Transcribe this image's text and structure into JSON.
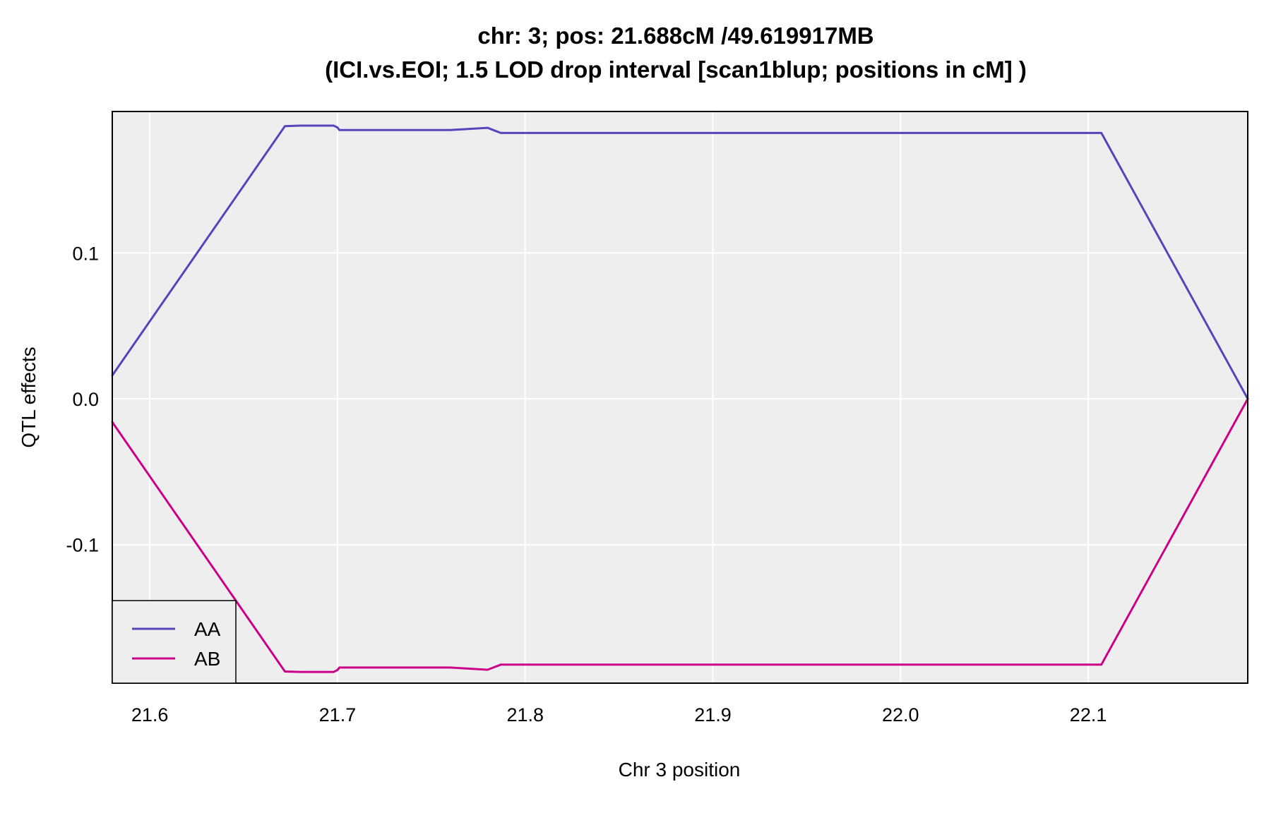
{
  "chart_data": {
    "type": "line",
    "title": "chr: 3; pos: 21.688cM /49.619917MB",
    "subtitle": "(ICI.vs.EOI; 1.5 LOD drop interval [scan1blup; positions in cM] )",
    "xlabel": "Chr 3 position",
    "ylabel": "QTL effects",
    "xlim": [
      21.58,
      22.185
    ],
    "ylim": [
      -0.195,
      0.197
    ],
    "x_ticks": [
      21.6,
      21.7,
      21.8,
      21.9,
      22.0,
      22.1
    ],
    "x_tick_labels": [
      "21.6",
      "21.7",
      "21.8",
      "21.9",
      "22.0",
      "22.1"
    ],
    "y_ticks": [
      -0.1,
      0.0,
      0.1
    ],
    "y_tick_labels": [
      "-0.1",
      "0.0",
      "0.1"
    ],
    "grid": true,
    "legend_position": "bottom-left",
    "background": "#eeeeee",
    "series": [
      {
        "name": "AA",
        "color": "#5544bb",
        "x": [
          21.58,
          21.672,
          21.68,
          21.698,
          21.7,
          21.701,
          21.76,
          21.78,
          21.784,
          21.787,
          22.107,
          22.185
        ],
        "y": [
          0.016,
          0.187,
          0.1873,
          0.1873,
          0.186,
          0.1843,
          0.1843,
          0.1858,
          0.1838,
          0.1823,
          0.1823,
          0.0
        ]
      },
      {
        "name": "AB",
        "color": "#cc0088",
        "x": [
          21.58,
          21.672,
          21.68,
          21.698,
          21.7,
          21.701,
          21.76,
          21.78,
          21.784,
          21.787,
          22.107,
          22.185
        ],
        "y": [
          -0.016,
          -0.187,
          -0.1873,
          -0.1873,
          -0.186,
          -0.1843,
          -0.1843,
          -0.1858,
          -0.1838,
          -0.1823,
          -0.1823,
          0.0
        ]
      }
    ]
  }
}
